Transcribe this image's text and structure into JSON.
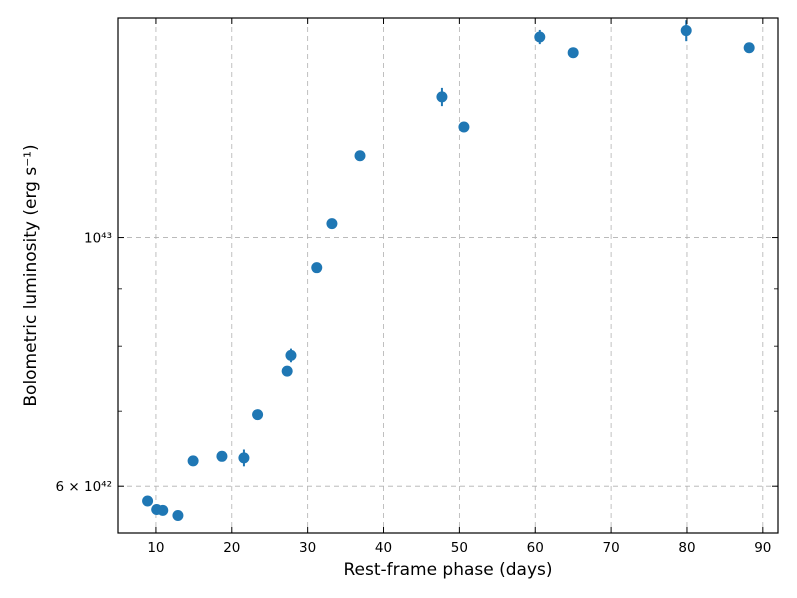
{
  "chart_data": {
    "type": "scatter",
    "title": "",
    "xlabel": "Rest-frame phase (days)",
    "ylabel": "Bolometric luminosity (erg s⁻¹)",
    "xlim": [
      5,
      92
    ],
    "ylim": [
      5.45e+42,
      1.57e+43
    ],
    "yscale": "log",
    "grid": true,
    "x_ticks": [
      10,
      20,
      30,
      40,
      50,
      60,
      70,
      80,
      90
    ],
    "y_tick_labels": [
      {
        "value": 6e+42,
        "label": "6 × 10⁴²"
      },
      {
        "value": 1e+43,
        "label": "10⁴³"
      }
    ],
    "y_minor_ticks": [
      7e+42,
      8e+42,
      9e+42
    ],
    "color": "#1f77b4",
    "series": [
      {
        "points": [
          {
            "x": 8.9,
            "y": 5.82e+42,
            "yerr": 0
          },
          {
            "x": 10.1,
            "y": 5.72e+42,
            "yerr": 0
          },
          {
            "x": 10.9,
            "y": 5.71e+42,
            "yerr": 0
          },
          {
            "x": 12.9,
            "y": 5.65e+42,
            "yerr": 0
          },
          {
            "x": 14.9,
            "y": 6.32e+42,
            "yerr": 0
          },
          {
            "x": 18.7,
            "y": 6.38e+42,
            "yerr": 0
          },
          {
            "x": 21.6,
            "y": 6.36e+42,
            "yerr": 1.1e+41
          },
          {
            "x": 23.4,
            "y": 6.95e+42,
            "yerr": 0
          },
          {
            "x": 27.3,
            "y": 7.6e+42,
            "yerr": 0
          },
          {
            "x": 27.8,
            "y": 7.85e+42,
            "yerr": 1.1e+41
          },
          {
            "x": 31.2,
            "y": 9.4e+42,
            "yerr": 0
          },
          {
            "x": 33.2,
            "y": 1.029e+43,
            "yerr": 0
          },
          {
            "x": 36.9,
            "y": 1.183e+43,
            "yerr": 0
          },
          {
            "x": 47.7,
            "y": 1.335e+43,
            "yerr": 2.5e+41
          },
          {
            "x": 50.6,
            "y": 1.255e+43,
            "yerr": 0
          },
          {
            "x": 60.6,
            "y": 1.51e+43,
            "yerr": 2.2e+41
          },
          {
            "x": 65.0,
            "y": 1.462e+43,
            "yerr": 1.2e+41
          },
          {
            "x": 79.9,
            "y": 1.53e+43,
            "yerr": 3.3e+41
          },
          {
            "x": 88.2,
            "y": 1.477e+43,
            "yerr": 1.2e+41
          }
        ]
      }
    ]
  }
}
